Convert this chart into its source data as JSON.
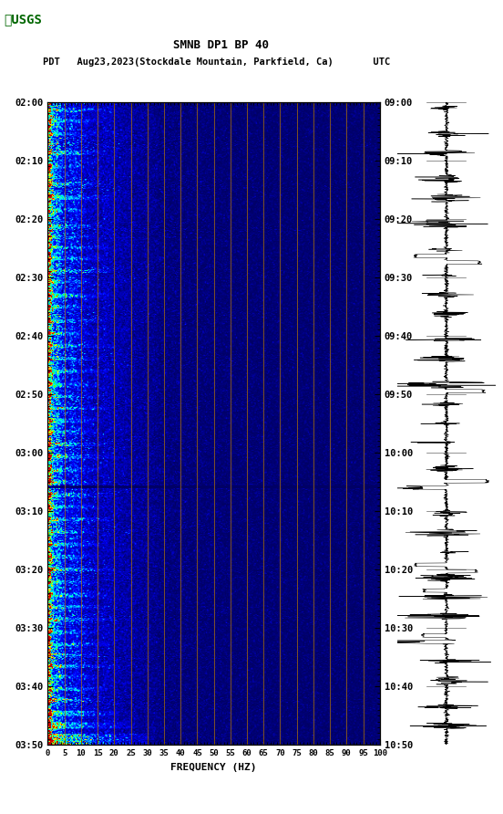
{
  "title_line1": "SMNB DP1 BP 40",
  "title_line2": "PDT   Aug23,2023(Stockdale Mountain, Parkfield, Ca)       UTC",
  "xlabel": "FREQUENCY (HZ)",
  "left_yticks": [
    "02:00",
    "02:10",
    "02:20",
    "02:30",
    "02:40",
    "02:50",
    "03:00",
    "03:10",
    "03:20",
    "03:30",
    "03:40",
    "03:50"
  ],
  "right_yticks": [
    "09:00",
    "09:10",
    "09:20",
    "09:30",
    "09:40",
    "09:50",
    "10:00",
    "10:10",
    "10:20",
    "10:30",
    "10:40",
    "10:50"
  ],
  "freq_ticks": [
    0,
    5,
    10,
    15,
    20,
    25,
    30,
    35,
    40,
    45,
    50,
    55,
    60,
    65,
    70,
    75,
    80,
    85,
    90,
    95,
    100
  ],
  "background_color": "#ffffff",
  "vertical_line_color": "#b87800",
  "n_freq": 300,
  "n_time": 720,
  "seed": 42,
  "event_rows": [
    [
      8,
      12,
      0,
      60,
      4.0
    ],
    [
      20,
      24,
      0,
      50,
      3.5
    ],
    [
      35,
      38,
      0,
      45,
      3.0
    ],
    [
      55,
      60,
      0,
      55,
      4.5
    ],
    [
      72,
      75,
      0,
      40,
      3.5
    ],
    [
      90,
      95,
      0,
      50,
      4.0
    ],
    [
      105,
      110,
      0,
      60,
      4.5
    ],
    [
      120,
      124,
      0,
      45,
      3.5
    ],
    [
      138,
      142,
      0,
      50,
      4.0
    ],
    [
      150,
      154,
      0,
      40,
      3.5
    ],
    [
      162,
      165,
      0,
      55,
      4.0
    ],
    [
      174,
      178,
      0,
      50,
      4.5
    ],
    [
      188,
      192,
      0,
      60,
      5.0
    ],
    [
      200,
      204,
      0,
      45,
      3.5
    ],
    [
      215,
      220,
      0,
      55,
      4.5
    ],
    [
      228,
      232,
      0,
      40,
      3.5
    ],
    [
      244,
      248,
      0,
      50,
      4.0
    ],
    [
      258,
      262,
      0,
      45,
      3.5
    ],
    [
      272,
      276,
      0,
      60,
      4.5
    ],
    [
      286,
      290,
      0,
      50,
      4.0
    ],
    [
      300,
      304,
      0,
      55,
      4.5
    ],
    [
      315,
      320,
      0,
      45,
      4.0
    ],
    [
      328,
      332,
      0,
      50,
      3.5
    ],
    [
      342,
      345,
      0,
      60,
      4.5
    ],
    [
      355,
      360,
      0,
      50,
      4.0
    ],
    [
      368,
      372,
      0,
      45,
      3.5
    ],
    [
      382,
      386,
      0,
      55,
      4.5
    ],
    [
      395,
      400,
      0,
      60,
      5.0
    ],
    [
      410,
      415,
      0,
      50,
      4.0
    ],
    [
      424,
      428,
      0,
      45,
      3.5
    ],
    [
      438,
      443,
      0,
      55,
      4.5
    ],
    [
      452,
      456,
      0,
      50,
      4.0
    ],
    [
      466,
      470,
      0,
      60,
      4.5
    ],
    [
      480,
      484,
      0,
      45,
      4.0
    ],
    [
      494,
      498,
      0,
      55,
      4.5
    ],
    [
      508,
      512,
      0,
      50,
      4.0
    ],
    [
      522,
      526,
      0,
      60,
      4.5
    ],
    [
      536,
      540,
      0,
      45,
      4.0
    ],
    [
      550,
      555,
      0,
      55,
      4.5
    ],
    [
      564,
      568,
      0,
      50,
      4.0
    ],
    [
      578,
      582,
      0,
      60,
      5.0
    ],
    [
      592,
      596,
      0,
      45,
      4.0
    ],
    [
      606,
      610,
      0,
      55,
      4.5
    ],
    [
      618,
      622,
      0,
      50,
      4.0
    ],
    [
      630,
      634,
      0,
      60,
      4.5
    ],
    [
      642,
      646,
      0,
      45,
      4.0
    ],
    [
      656,
      660,
      0,
      55,
      4.5
    ],
    [
      668,
      672,
      0,
      50,
      5.0
    ],
    [
      682,
      688,
      0,
      65,
      5.5
    ],
    [
      695,
      702,
      0,
      75,
      6.0
    ],
    [
      708,
      720,
      0,
      90,
      6.5
    ]
  ],
  "dark_band_row": 430
}
